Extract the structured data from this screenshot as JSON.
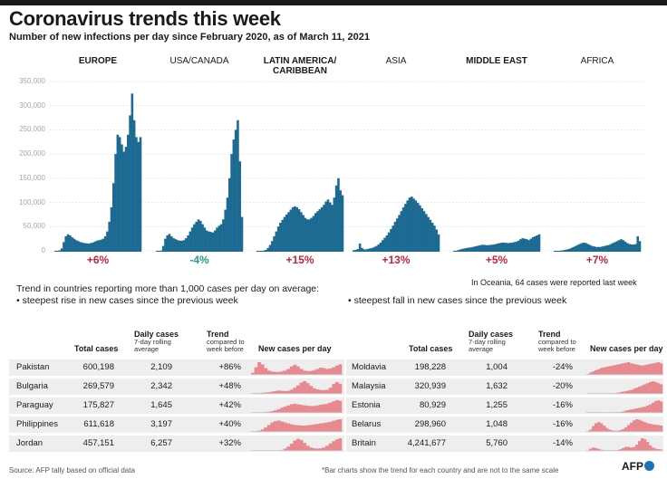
{
  "header": {
    "title": "Coronavirus trends this week",
    "subtitle": "Number of new infections per day since February 2020, as of  March 11, 2021"
  },
  "chart_data": {
    "type": "bar",
    "title": "Coronavirus trends this week",
    "ylim": [
      0,
      350000
    ],
    "y_ticks": [
      "350,000",
      "300,000",
      "250,000",
      "200,000",
      "150,000",
      "100,000",
      "50,000",
      "0"
    ],
    "series": [
      {
        "name": "EUROPE",
        "bold": true,
        "change": "+6%",
        "direction": "up",
        "values": [
          0,
          0,
          1000,
          5000,
          18000,
          30000,
          34000,
          32000,
          28000,
          25000,
          22000,
          20000,
          18000,
          17000,
          16000,
          15500,
          15000,
          16000,
          17000,
          19000,
          21000,
          22000,
          23000,
          25000,
          30000,
          40000,
          60000,
          90000,
          140000,
          200000,
          240000,
          235000,
          220000,
          205000,
          215000,
          240000,
          280000,
          325000,
          270000,
          235000,
          225000,
          235000
        ]
      },
      {
        "name": "USA/CANADA",
        "bold": false,
        "change": "-4%",
        "direction": "down",
        "values": [
          0,
          0,
          500,
          10000,
          25000,
          32000,
          35000,
          30000,
          26000,
          24000,
          22000,
          21000,
          21000,
          22000,
          26000,
          32000,
          40000,
          48000,
          55000,
          60000,
          65000,
          62000,
          55000,
          48000,
          42000,
          40000,
          39000,
          38000,
          42000,
          48000,
          52000,
          55000,
          65000,
          85000,
          110000,
          150000,
          200000,
          230000,
          250000,
          270000,
          185000,
          70000
        ]
      },
      {
        "name": "LATIN AMERICA/ CARIBBEAN",
        "bold": true,
        "change": "+15%",
        "direction": "up",
        "values": [
          0,
          0,
          0,
          500,
          2000,
          6000,
          12000,
          20000,
          30000,
          40000,
          50000,
          58000,
          64000,
          70000,
          75000,
          80000,
          85000,
          90000,
          92000,
          90000,
          86000,
          80000,
          74000,
          68000,
          65000,
          65000,
          68000,
          72000,
          78000,
          82000,
          86000,
          90000,
          95000,
          102000,
          106000,
          100000,
          95000,
          110000,
          135000,
          150000,
          125000,
          115000
        ]
      },
      {
        "name": "ASIA",
        "bold": false,
        "change": "+13%",
        "direction": "up",
        "values": [
          1000,
          2000,
          3500,
          15000,
          6000,
          3000,
          3000,
          4000,
          5000,
          6000,
          8000,
          10000,
          13000,
          17000,
          22000,
          27000,
          32000,
          38000,
          45000,
          52000,
          60000,
          67000,
          74000,
          82000,
          90000,
          97000,
          104000,
          110000,
          112000,
          108000,
          104000,
          99000,
          94000,
          88000,
          82000,
          76000,
          70000,
          64000,
          58000,
          52000,
          44000,
          34000
        ]
      },
      {
        "name": "MIDDLE EAST",
        "bold": true,
        "change": "+5%",
        "direction": "up",
        "values": [
          0,
          0,
          1500,
          3000,
          4000,
          5000,
          6000,
          6500,
          7000,
          8000,
          9000,
          10000,
          11000,
          12000,
          12500,
          12000,
          11500,
          12000,
          12500,
          13000,
          14000,
          15000,
          16000,
          17000,
          17000,
          16500,
          16000,
          16500,
          17000,
          18000,
          19000,
          21000,
          24000,
          26000,
          25000,
          24000,
          22000,
          25000,
          28000,
          30000,
          32000,
          34000
        ]
      },
      {
        "name": "AFRICA",
        "bold": false,
        "change": "+7%",
        "direction": "up",
        "values": [
          0,
          0,
          0,
          500,
          1000,
          2000,
          3000,
          4000,
          6000,
          8000,
          10000,
          12000,
          14000,
          16000,
          17000,
          16000,
          14000,
          12000,
          10000,
          9000,
          8000,
          8000,
          8000,
          9000,
          10000,
          11000,
          12000,
          14000,
          16000,
          18000,
          20000,
          22000,
          24000,
          22000,
          19000,
          16000,
          14000,
          13000,
          13000,
          14000,
          30000,
          20000
        ]
      }
    ]
  },
  "notes": {
    "oceania": "In Oceania, 64 cases were reported last week",
    "intro_line1": "Trend in countries reporting more than 1,000 cases per day on average:",
    "intro_line2": "•  steepest rise in new cases since the previous week",
    "fall_heading": "•  steepest fall in new cases since the previous week"
  },
  "table_headers": {
    "total_cases": "Total cases",
    "daily_cases": "Daily cases",
    "daily_sub": "7-day rolling average",
    "trend": "Trend",
    "trend_sub": "compared to week before",
    "new_cases": "New cases per day"
  },
  "rise_table": [
    {
      "country": "Pakistan",
      "total": "600,198",
      "daily": "2,109",
      "trend": "+86%",
      "spark": [
        5,
        18,
        30,
        25,
        16,
        10,
        8,
        7,
        7,
        8,
        10,
        14,
        20,
        24,
        20,
        14,
        10,
        9,
        9,
        11,
        14,
        17,
        16,
        14,
        15,
        18,
        22,
        25
      ]
    },
    {
      "country": "Bulgaria",
      "total": "269,579",
      "daily": "2,342",
      "trend": "+48%",
      "spark": [
        1,
        2,
        3,
        4,
        5,
        6,
        8,
        10,
        12,
        11,
        10,
        11,
        15,
        22,
        30,
        40,
        45,
        38,
        28,
        20,
        16,
        14,
        13,
        15,
        22,
        35,
        42,
        36
      ]
    },
    {
      "country": "Paraguay",
      "total": "175,827",
      "daily": "1,645",
      "trend": "+42%",
      "spark": [
        0,
        0,
        1,
        1,
        2,
        4,
        6,
        9,
        13,
        18,
        22,
        26,
        30,
        32,
        30,
        28,
        26,
        25,
        24,
        24,
        26,
        28,
        30,
        32,
        36,
        40,
        44,
        42
      ]
    },
    {
      "country": "Philippines",
      "total": "611,618",
      "daily": "3,197",
      "trend": "+40%",
      "spark": [
        1,
        2,
        4,
        8,
        14,
        22,
        30,
        34,
        36,
        33,
        30,
        27,
        24,
        22,
        21,
        20,
        20,
        21,
        22,
        24,
        25,
        27,
        28,
        30,
        32,
        35,
        38,
        40
      ]
    },
    {
      "country": "Jordan",
      "total": "457,151",
      "daily": "6,257",
      "trend": "+32%",
      "spark": [
        0,
        0,
        0,
        0,
        0,
        0,
        0,
        0,
        1,
        3,
        8,
        15,
        25,
        36,
        42,
        38,
        28,
        18,
        12,
        9,
        8,
        9,
        12,
        18,
        26,
        34,
        40,
        44
      ]
    }
  ],
  "fall_table": [
    {
      "country": "Moldavia",
      "total": "198,228",
      "daily": "1,004",
      "trend": "-24%",
      "spark": [
        3,
        8,
        12,
        16,
        20,
        24,
        26,
        28,
        30,
        32,
        34,
        36,
        38,
        40,
        42,
        44,
        40,
        38,
        36,
        34,
        32,
        34,
        36,
        38,
        40,
        42,
        44,
        40
      ]
    },
    {
      "country": "Malaysia",
      "total": "320,939",
      "daily": "1,632",
      "trend": "-20%",
      "spark": [
        0,
        0,
        0,
        0,
        0,
        0,
        0,
        0,
        1,
        1,
        2,
        4,
        6,
        8,
        10,
        12,
        14,
        18,
        22,
        26,
        30,
        34,
        38,
        42,
        45,
        42,
        38,
        34
      ]
    },
    {
      "country": "Estonia",
      "total": "80,929",
      "daily": "1,255",
      "trend": "-16%",
      "spark": [
        1,
        1,
        1,
        1,
        1,
        0,
        0,
        0,
        0,
        1,
        1,
        2,
        3,
        5,
        8,
        10,
        12,
        14,
        16,
        18,
        20,
        22,
        26,
        30,
        36,
        42,
        45,
        40
      ]
    },
    {
      "country": "Belarus",
      "total": "298,960",
      "daily": "1,048",
      "trend": "-16%",
      "spark": [
        2,
        8,
        20,
        30,
        34,
        30,
        22,
        14,
        8,
        5,
        4,
        4,
        6,
        10,
        16,
        24,
        32,
        40,
        44,
        42,
        38,
        34,
        30,
        28,
        26,
        25,
        24,
        22
      ]
    },
    {
      "country": "Britain",
      "total": "4,241,677",
      "daily": "5,760",
      "trend": "-14%",
      "spark": [
        2,
        8,
        12,
        10,
        7,
        4,
        2,
        1,
        1,
        1,
        2,
        3,
        6,
        10,
        14,
        14,
        12,
        14,
        22,
        35,
        45,
        42,
        32,
        20,
        12,
        8,
        6,
        5
      ]
    }
  ],
  "footer": {
    "source": "Source: AFP tally based on official data",
    "footnote": "*Bar charts show the trend for each country and are not to the same scale",
    "logo": "AFP"
  }
}
